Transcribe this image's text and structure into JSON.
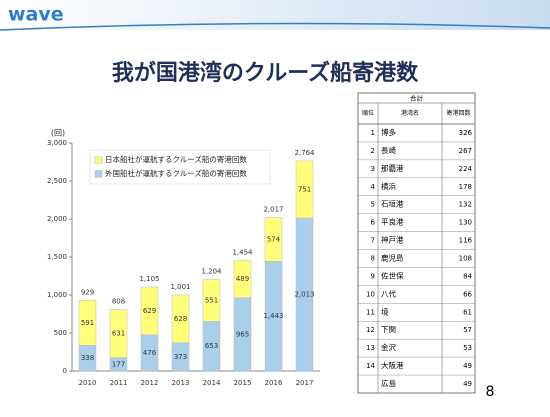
{
  "header": {
    "logo": "wave",
    "title": "我が国港湾のクルーズ船寄港数",
    "page_number": "8"
  },
  "chart_data": {
    "type": "stacked-bar",
    "y_unit": "(回)",
    "categories": [
      "2010",
      "2011",
      "2012",
      "2013",
      "2014",
      "2015",
      "2016",
      "2017"
    ],
    "series": [
      {
        "name": "外国船社が運航するクルーズ船の寄港回数",
        "color": "#a9cfea",
        "values": [
          338,
          177,
          476,
          373,
          653,
          965,
          1443,
          2013
        ],
        "value_labels": [
          "338",
          "177",
          "476",
          "373",
          "653",
          "965",
          "1,443",
          "2,013"
        ]
      },
      {
        "name": "日本船社が運航するクルーズ船の寄港回数",
        "color": "#ffff7a",
        "values": [
          591,
          631,
          629,
          628,
          551,
          489,
          574,
          751
        ]
      }
    ],
    "totals": {
      "values": [
        929,
        808,
        1105,
        1001,
        1204,
        1454,
        2017,
        2764
      ],
      "value_labels": [
        "929",
        "808",
        "1,105",
        "1,001",
        "1,204",
        "1,454",
        "2,017",
        "2,764"
      ]
    },
    "ylim": [
      0,
      3000
    ],
    "yticks": [
      0,
      500,
      {
        "value": 1000,
        "label": "1,000"
      },
      {
        "value": 1500,
        "label": "1,500"
      },
      {
        "value": 2000,
        "label": "2,000"
      },
      {
        "value": 2500,
        "label": "2,500"
      },
      {
        "value": 3000,
        "label": "3,000"
      }
    ],
    "grid": false
  },
  "table": {
    "caption": "合計",
    "columns": [
      "順位",
      "港湾名",
      "寄港回数"
    ],
    "rows": [
      [
        1,
        "博多",
        326
      ],
      [
        2,
        "長崎",
        267
      ],
      [
        3,
        "那覇港",
        224
      ],
      [
        4,
        "横浜",
        178
      ],
      [
        5,
        "石垣港",
        132
      ],
      [
        6,
        "平良港",
        130
      ],
      [
        7,
        "神戸港",
        116
      ],
      [
        8,
        "鹿児島",
        108
      ],
      [
        9,
        "佐世保",
        84
      ],
      [
        10,
        "八代",
        66
      ],
      [
        11,
        "境",
        61
      ],
      [
        12,
        "下関",
        57
      ],
      [
        13,
        "金沢",
        53
      ],
      [
        14,
        "大阪港",
        49
      ],
      [
        null,
        "広島",
        49
      ]
    ]
  }
}
